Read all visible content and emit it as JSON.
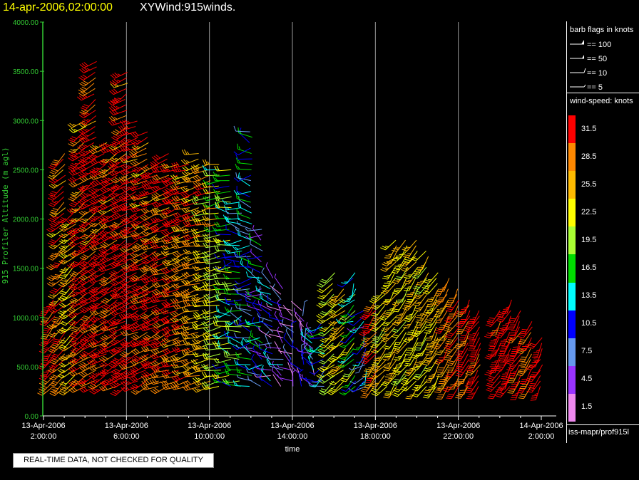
{
  "header": {
    "time": "14-apr-2006,02:00:00",
    "title": "XYWind:915winds."
  },
  "qc_note": "REAL-TIME DATA, NOT CHECKED FOR QUALITY",
  "legend": {
    "barb_title": "barb flags in knots",
    "barb_items": [
      "== 100",
      "== 50",
      "== 10",
      "== 5"
    ],
    "speed_title": "wind-speed: knots",
    "speed_bins": [
      {
        "label": "31.5",
        "color": "#ff0000"
      },
      {
        "label": "28.5",
        "color": "#ff8800"
      },
      {
        "label": "25.5",
        "color": "#ffbb00"
      },
      {
        "label": "22.5",
        "color": "#ffff00"
      },
      {
        "label": "19.5",
        "color": "#aaff33"
      },
      {
        "label": "16.5",
        "color": "#00dd00"
      },
      {
        "label": "13.5",
        "color": "#00ffff"
      },
      {
        "label": "10.5",
        "color": "#0000ff"
      },
      {
        "label": "7.5",
        "color": "#6699ee"
      },
      {
        "label": "4.5",
        "color": "#9933ff"
      },
      {
        "label": "1.5",
        "color": "#ee88ee"
      }
    ],
    "source": "iss-mapr/prof915l"
  },
  "chart_data": {
    "type": "scatter",
    "xlabel": "time",
    "ylabel": "915 Profiler Altitude (m agl)",
    "ylim": [
      0,
      4000
    ],
    "yticks": [
      "0.00",
      "500.00",
      "1000.00",
      "1500.00",
      "2000.00",
      "2500.00",
      "3000.00",
      "3500.00",
      "4000.00"
    ],
    "xticks": [
      {
        "date": "13-Apr-2006",
        "time": "2:00:00"
      },
      {
        "date": "13-Apr-2006",
        "time": "6:00:00"
      },
      {
        "date": "13-Apr-2006",
        "time": "10:00:00"
      },
      {
        "date": "13-Apr-2006",
        "time": "14:00:00"
      },
      {
        "date": "13-Apr-2006",
        "time": "18:00:00"
      },
      {
        "date": "13-Apr-2006",
        "time": "22:00:00"
      },
      {
        "date": "14-Apr-2006",
        "time": "2:00:00"
      }
    ],
    "xlim_hours": [
      2,
      26
    ],
    "profiles": [
      {
        "t": 2.5,
        "bottom": 300,
        "top": 1200,
        "speed": 31,
        "dir": 220
      },
      {
        "t": 3.0,
        "bottom": 300,
        "top": 2700,
        "speed": 29,
        "dir": 225
      },
      {
        "t": 3.5,
        "bottom": 300,
        "top": 2100,
        "speed": 24,
        "dir": 230
      },
      {
        "t": 4.0,
        "bottom": 300,
        "top": 3000,
        "speed": 30,
        "dir": 235
      },
      {
        "t": 4.5,
        "bottom": 300,
        "top": 3600,
        "speed": 31,
        "dir": 235
      },
      {
        "t": 5.0,
        "bottom": 300,
        "top": 2800,
        "speed": 32,
        "dir": 240
      },
      {
        "t": 5.5,
        "bottom": 300,
        "top": 2800,
        "speed": 31,
        "dir": 240
      },
      {
        "t": 6.0,
        "bottom": 300,
        "top": 3500,
        "speed": 33,
        "dir": 240
      },
      {
        "t": 6.5,
        "bottom": 300,
        "top": 3000,
        "speed": 32,
        "dir": 245
      },
      {
        "t": 7.0,
        "bottom": 300,
        "top": 2900,
        "speed": 30,
        "dir": 245
      },
      {
        "t": 7.5,
        "bottom": 300,
        "top": 2600,
        "speed": 31,
        "dir": 245
      },
      {
        "t": 8.0,
        "bottom": 300,
        "top": 2700,
        "speed": 30,
        "dir": 250
      },
      {
        "t": 8.5,
        "bottom": 300,
        "top": 2600,
        "speed": 29,
        "dir": 250
      },
      {
        "t": 9.0,
        "bottom": 300,
        "top": 2600,
        "speed": 28,
        "dir": 250
      },
      {
        "t": 9.5,
        "bottom": 300,
        "top": 2700,
        "speed": 27,
        "dir": 255
      },
      {
        "t": 10.0,
        "bottom": 300,
        "top": 2600,
        "speed": 24,
        "dir": 255
      },
      {
        "t": 10.5,
        "bottom": 300,
        "top": 2600,
        "speed": 21,
        "dir": 260
      },
      {
        "t": 11.0,
        "bottom": 300,
        "top": 2500,
        "speed": 17,
        "dir": 265
      },
      {
        "t": 11.5,
        "bottom": 300,
        "top": 2200,
        "speed": 14,
        "dir": 270
      },
      {
        "t": 12.0,
        "bottom": 300,
        "top": 2900,
        "speed": 12,
        "dir": 280
      },
      {
        "t": 12.5,
        "bottom": 300,
        "top": 1900,
        "speed": 10,
        "dir": 290
      },
      {
        "t": 13.0,
        "bottom": 300,
        "top": 1400,
        "speed": 8,
        "dir": 300
      },
      {
        "t": 13.5,
        "bottom": 300,
        "top": 1300,
        "speed": 6,
        "dir": 310
      },
      {
        "t": 14.0,
        "bottom": 300,
        "top": 1100,
        "speed": 5,
        "dir": 320
      },
      {
        "t": 14.5,
        "bottom": 300,
        "top": 1100,
        "speed": 7,
        "dir": 330
      },
      {
        "t": 15.0,
        "bottom": 300,
        "top": 800,
        "speed": 8,
        "dir": 320
      },
      {
        "t": 15.5,
        "bottom": 300,
        "top": 1000,
        "speed": 12,
        "dir": 250
      },
      {
        "t": 16.0,
        "bottom": 300,
        "top": 1500,
        "speed": 21,
        "dir": 230
      },
      {
        "t": 16.5,
        "bottom": 300,
        "top": 1300,
        "speed": 24,
        "dir": 230
      },
      {
        "t": 17.0,
        "bottom": 300,
        "top": 1500,
        "speed": 16,
        "dir": 225
      },
      {
        "t": 17.5,
        "bottom": 300,
        "top": 1100,
        "speed": 11,
        "dir": 220
      },
      {
        "t": 18.0,
        "bottom": 300,
        "top": 1200,
        "speed": 29,
        "dir": 220
      },
      {
        "t": 18.5,
        "bottom": 300,
        "top": 1300,
        "speed": 23,
        "dir": 220
      },
      {
        "t": 19.0,
        "bottom": 300,
        "top": 1800,
        "speed": 24,
        "dir": 215
      },
      {
        "t": 19.5,
        "bottom": 300,
        "top": 1800,
        "speed": 22,
        "dir": 215
      },
      {
        "t": 20.0,
        "bottom": 300,
        "top": 1800,
        "speed": 24,
        "dir": 215
      },
      {
        "t": 20.5,
        "bottom": 300,
        "top": 1700,
        "speed": 23,
        "dir": 215
      },
      {
        "t": 21.0,
        "bottom": 300,
        "top": 1500,
        "speed": 25,
        "dir": 210
      },
      {
        "t": 21.5,
        "bottom": 300,
        "top": 1400,
        "speed": 28,
        "dir": 210
      },
      {
        "t": 22.0,
        "bottom": 300,
        "top": 1300,
        "speed": 30,
        "dir": 210
      },
      {
        "t": 22.5,
        "bottom": 300,
        "top": 1200,
        "speed": 31,
        "dir": 210
      },
      {
        "t": 23.0,
        "bottom": 300,
        "top": 1100,
        "speed": 32,
        "dir": 210
      },
      {
        "t": 24.0,
        "bottom": 300,
        "top": 1100,
        "speed": 32,
        "dir": 210
      },
      {
        "t": 24.5,
        "bottom": 300,
        "top": 1200,
        "speed": 33,
        "dir": 210
      },
      {
        "t": 25.0,
        "bottom": 300,
        "top": 1100,
        "speed": 32,
        "dir": 210
      },
      {
        "t": 25.5,
        "bottom": 300,
        "top": 1000,
        "speed": 31,
        "dir": 210
      },
      {
        "t": 26.0,
        "bottom": 300,
        "top": 800,
        "speed": 33,
        "dir": 210
      }
    ]
  }
}
